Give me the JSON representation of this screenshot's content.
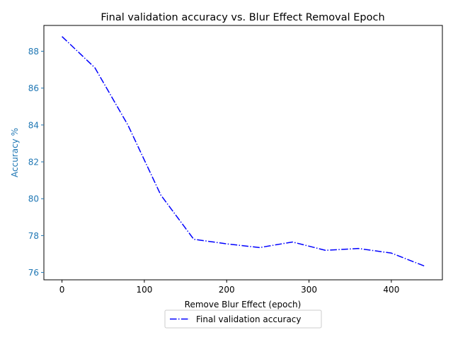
{
  "chart_data": {
    "type": "line",
    "title": "Final validation accuracy vs. Blur Effect Removal Epoch",
    "xlabel": "Remove Blur Effect (epoch)",
    "ylabel": "Accuracy %",
    "xlim": [
      -22,
      462
    ],
    "ylim": [
      75.6,
      89.4
    ],
    "xticks": [
      0,
      100,
      200,
      300,
      400
    ],
    "yticks": [
      76,
      78,
      80,
      82,
      84,
      86,
      88
    ],
    "grid": false,
    "legend_position": "below-center",
    "ylabel_color": "#1f77b4",
    "series": [
      {
        "name": "Final validation accuracy",
        "color": "#0000ff",
        "line_style": "dash-dot",
        "x": [
          0,
          40,
          80,
          120,
          160,
          200,
          240,
          280,
          320,
          360,
          400,
          440
        ],
        "y": [
          88.8,
          87.1,
          84.0,
          80.2,
          77.8,
          77.55,
          77.35,
          77.65,
          77.2,
          77.3,
          77.05,
          76.35
        ]
      }
    ]
  }
}
